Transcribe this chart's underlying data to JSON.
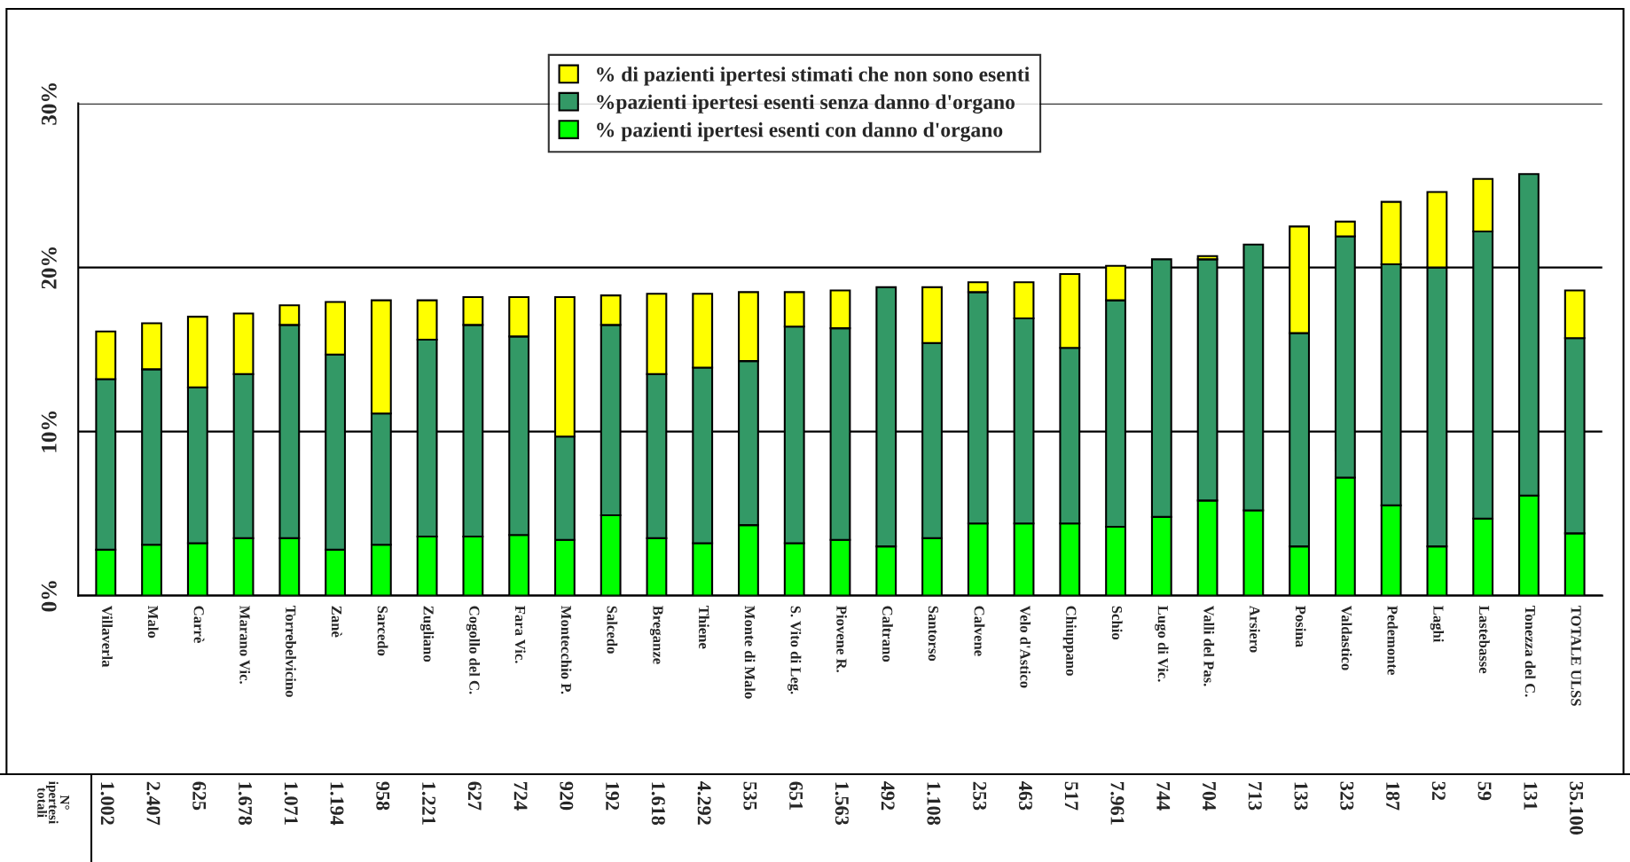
{
  "chart_data": {
    "type": "bar",
    "stacked": true,
    "categories": [
      "Villaverla",
      "Malo",
      "Carrè",
      "Marano Vic.",
      "Torrebelvicino",
      "Zanè",
      "Sarcedo",
      "Zugliano",
      "Cogollo del C.",
      "Fara Vic.",
      "Montecchio P.",
      "Salcedo",
      "Breganze",
      "Thiene",
      "Monte di Malo",
      "S. Vito di Leg.",
      "Piovene R.",
      "Caltrano",
      "Santorso",
      "Calvene",
      "Velo d'Astico",
      "Chiuppano",
      "Schio",
      "Lugo di Vic.",
      "Valli del Pas.",
      "Arsiero",
      "Posina",
      "Valdastico",
      "Pedemonte",
      "Laghi",
      "Lastebasse",
      "Tonezza del C.",
      "TOTALE ULSS"
    ],
    "series": [
      {
        "name": "% pazienti ipertesi esenti con danno d'organo",
        "color": "#00ff00",
        "values": [
          2.8,
          3.1,
          3.2,
          3.5,
          3.5,
          2.8,
          3.1,
          3.6,
          3.6,
          3.7,
          3.4,
          4.9,
          3.5,
          3.2,
          4.3,
          3.2,
          3.4,
          3.0,
          3.5,
          4.4,
          4.4,
          4.4,
          4.2,
          4.8,
          5.8,
          5.2,
          3.0,
          7.2,
          5.5,
          3.0,
          4.7,
          6.1,
          3.8
        ]
      },
      {
        "name": "%pazienti ipertesi esenti senza danno d'organo",
        "color": "#339966",
        "values": [
          10.4,
          10.7,
          9.5,
          10.0,
          13.0,
          11.9,
          8.0,
          12.0,
          12.9,
          12.1,
          6.3,
          11.6,
          10.0,
          10.7,
          10.0,
          13.2,
          12.9,
          15.8,
          11.9,
          14.1,
          12.5,
          10.7,
          13.8,
          15.7,
          14.7,
          16.2,
          13.0,
          14.7,
          14.7,
          17.0,
          17.5,
          19.6,
          11.9
        ]
      },
      {
        "name": "% di pazienti ipertesi stimati che non sono esenti",
        "color": "#ffff00",
        "values": [
          2.9,
          2.8,
          4.3,
          3.7,
          1.2,
          3.2,
          6.9,
          2.4,
          1.7,
          2.4,
          8.5,
          1.8,
          4.9,
          4.5,
          4.2,
          2.1,
          2.3,
          null,
          3.4,
          0.6,
          2.2,
          4.5,
          2.1,
          null,
          0.2,
          null,
          6.5,
          0.9,
          3.8,
          4.6,
          3.2,
          null,
          2.9
        ]
      }
    ],
    "ylim": [
      0,
      30
    ],
    "yticks": [
      {
        "value": 0,
        "label": "0%"
      },
      {
        "value": 10,
        "label": "10%"
      },
      {
        "value": 20,
        "label": "20%"
      },
      {
        "value": 30,
        "label": "30%"
      }
    ],
    "grid": "y",
    "legend": "top",
    "annotations": [
      "N° ipertesi totali",
      "1.002",
      "2.407",
      "625",
      "1.678",
      "1.071",
      "1.194",
      "958",
      "1.221",
      "627",
      "724",
      "920",
      "192",
      "1.618",
      "4.292",
      "535",
      "651",
      "1.563",
      "492",
      "1.108",
      "253",
      "463",
      "517",
      "7.961",
      "744",
      "704",
      "713",
      "133",
      "323",
      "187",
      "32",
      "59",
      "131",
      "35.100"
    ]
  }
}
